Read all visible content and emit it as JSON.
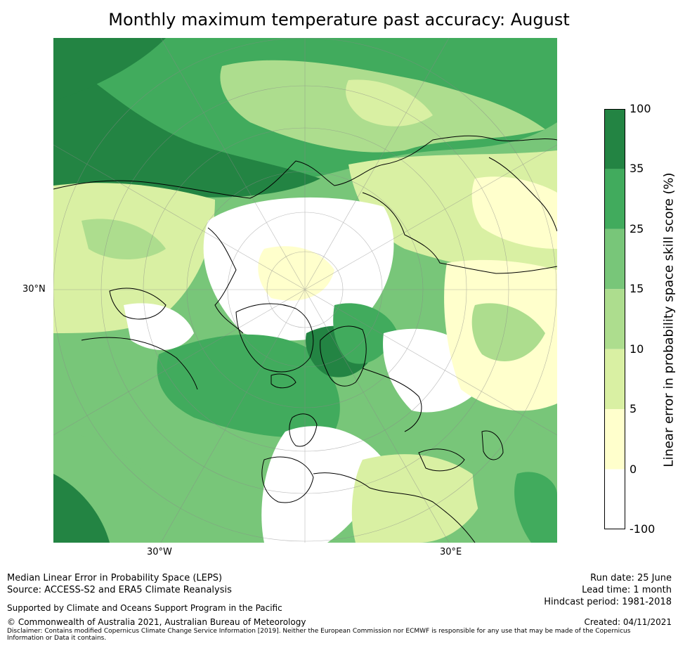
{
  "title": "Monthly maximum temperature past accuracy: August",
  "map": {
    "projection": "north-polar-stereographic",
    "labels": {
      "lat_30n": "30°N",
      "lon_30w": "30°W",
      "lon_30e": "30°E"
    },
    "palette": {
      "band_lt0": "#ffffff",
      "band_0_5": "#ffffcc",
      "band_5_10": "#d9f0a3",
      "band_10_15": "#addd8e",
      "band_15_25": "#78c679",
      "band_25_35": "#41ab5d",
      "band_35_100": "#238443"
    }
  },
  "colorbar": {
    "title": "Linear error in probability space skill score (%)",
    "ticks": [
      "100",
      "35",
      "25",
      "15",
      "10",
      "5",
      "0",
      "-100"
    ],
    "colors": [
      "#238443",
      "#41ab5d",
      "#78c679",
      "#addd8e",
      "#d9f0a3",
      "#ffffcc",
      "#ffffff"
    ]
  },
  "footer": {
    "left_line1": "Median Linear Error in Probability Space (LEPS)",
    "left_line2": "Source: ACCESS-S2 and ERA5 Climate Reanalysis",
    "support": "Supported by Climate and Oceans Support Program in the Pacific",
    "copyright": "© Commonwealth of Australia 2021, Australian Bureau of Meteorology",
    "disclaimer_line1": "Disclaimer: Contains modified Copernicus Climate Change Service Information [2019]. Neither the European Commission nor ECMWF is responsible for any use that may be made of the Copernicus",
    "disclaimer_line2": "Information or Data it contains.",
    "run_date": "Run date: 25 June",
    "lead_time": "Lead time: 1 month",
    "hindcast": "Hindcast period: 1981-2018",
    "created": "Created: 04/11/2021"
  }
}
